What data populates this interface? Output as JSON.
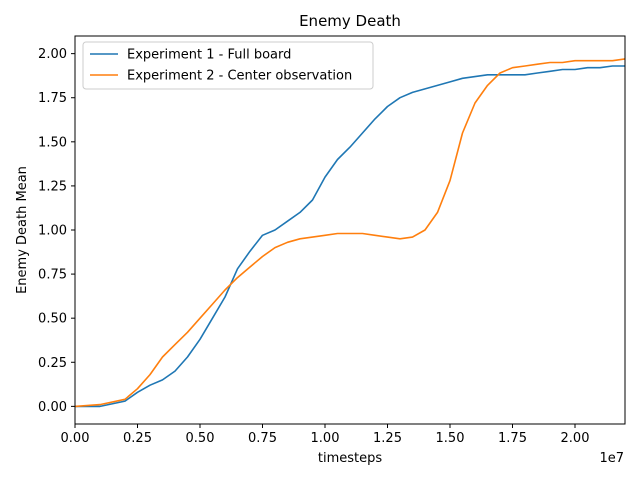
{
  "chart_data": {
    "type": "line",
    "title": "Enemy Death",
    "xlabel": "timesteps",
    "ylabel": "Enemy Death Mean",
    "x_offset_label": "1e7",
    "xlim": [
      0,
      2.2
    ],
    "ylim": [
      -0.1,
      2.1
    ],
    "x_ticks": [
      0,
      0.25,
      0.5,
      0.75,
      1.0,
      1.25,
      1.5,
      1.75,
      2.0
    ],
    "x_tick_labels": [
      "0.00",
      "0.25",
      "0.50",
      "0.75",
      "1.00",
      "1.25",
      "1.50",
      "1.75",
      "2.00"
    ],
    "y_ticks": [
      0,
      0.25,
      0.5,
      0.75,
      1.0,
      1.25,
      1.5,
      1.75,
      2.0
    ],
    "y_tick_labels": [
      "0.00",
      "0.25",
      "0.50",
      "0.75",
      "1.00",
      "1.25",
      "1.50",
      "1.75",
      "2.00"
    ],
    "grid": false,
    "legend_position": "top-left",
    "series": [
      {
        "name": "Experiment 1 - Full board",
        "color": "#1f77b4",
        "x": [
          0.0,
          0.1,
          0.2,
          0.25,
          0.3,
          0.35,
          0.4,
          0.45,
          0.5,
          0.55,
          0.6,
          0.65,
          0.7,
          0.75,
          0.8,
          0.85,
          0.9,
          0.95,
          1.0,
          1.05,
          1.1,
          1.15,
          1.2,
          1.25,
          1.3,
          1.35,
          1.4,
          1.45,
          1.5,
          1.55,
          1.6,
          1.65,
          1.7,
          1.75,
          1.8,
          1.85,
          1.9,
          1.95,
          2.0,
          2.05,
          2.1,
          2.15,
          2.2
        ],
        "y": [
          0.0,
          0.0,
          0.03,
          0.08,
          0.12,
          0.15,
          0.2,
          0.28,
          0.38,
          0.5,
          0.62,
          0.78,
          0.88,
          0.97,
          1.0,
          1.05,
          1.1,
          1.17,
          1.3,
          1.4,
          1.47,
          1.55,
          1.63,
          1.7,
          1.75,
          1.78,
          1.8,
          1.82,
          1.84,
          1.86,
          1.87,
          1.88,
          1.88,
          1.88,
          1.88,
          1.89,
          1.9,
          1.91,
          1.91,
          1.92,
          1.92,
          1.93,
          1.93
        ]
      },
      {
        "name": "Experiment 2 - Center observation",
        "color": "#ff7f0e",
        "x": [
          0.0,
          0.1,
          0.2,
          0.25,
          0.3,
          0.35,
          0.4,
          0.45,
          0.5,
          0.55,
          0.6,
          0.65,
          0.7,
          0.75,
          0.8,
          0.85,
          0.9,
          0.95,
          1.0,
          1.05,
          1.1,
          1.15,
          1.2,
          1.25,
          1.3,
          1.35,
          1.4,
          1.45,
          1.5,
          1.55,
          1.6,
          1.65,
          1.7,
          1.75,
          1.8,
          1.85,
          1.9,
          1.95,
          2.0,
          2.05,
          2.1,
          2.15,
          2.2
        ],
        "y": [
          0.0,
          0.01,
          0.04,
          0.1,
          0.18,
          0.28,
          0.35,
          0.42,
          0.5,
          0.58,
          0.66,
          0.73,
          0.79,
          0.85,
          0.9,
          0.93,
          0.95,
          0.96,
          0.97,
          0.98,
          0.98,
          0.98,
          0.97,
          0.96,
          0.95,
          0.96,
          1.0,
          1.1,
          1.28,
          1.55,
          1.72,
          1.82,
          1.89,
          1.92,
          1.93,
          1.94,
          1.95,
          1.95,
          1.96,
          1.96,
          1.96,
          1.96,
          1.97
        ]
      }
    ]
  }
}
